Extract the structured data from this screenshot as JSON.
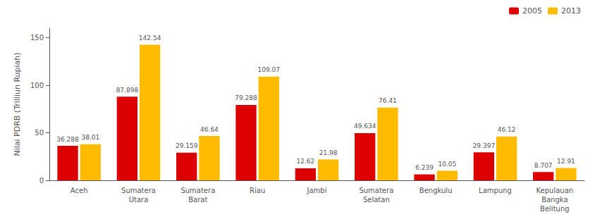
{
  "chart_data": {
    "type": "bar",
    "ylabel": "Nilai PDRB (Trilliun Rupiah)",
    "categories": [
      "Aceh",
      "Sumatera\nUtara",
      "Sumatera\nBarat",
      "Riau",
      "Jambi",
      "Sumatera\nSelatan",
      "Bengkulu",
      "Lampung",
      "Kepulauan\nBangka\nBelitung"
    ],
    "series": [
      {
        "name": "2005",
        "color": "#dd0000",
        "values": [
          36.288,
          87.898,
          29.159,
          79.288,
          12.62,
          49.634,
          6.239,
          29.397,
          8.707
        ]
      },
      {
        "name": "2013",
        "color": "#ffbb00",
        "values": [
          38.01,
          142.54,
          46.64,
          109.07,
          21.98,
          76.41,
          10.05,
          46.12,
          12.91
        ]
      }
    ],
    "ylim": [
      0,
      160
    ],
    "yticks": [
      0,
      50,
      100,
      150
    ],
    "grid": false,
    "legend": "upper right",
    "data_labels": true
  }
}
